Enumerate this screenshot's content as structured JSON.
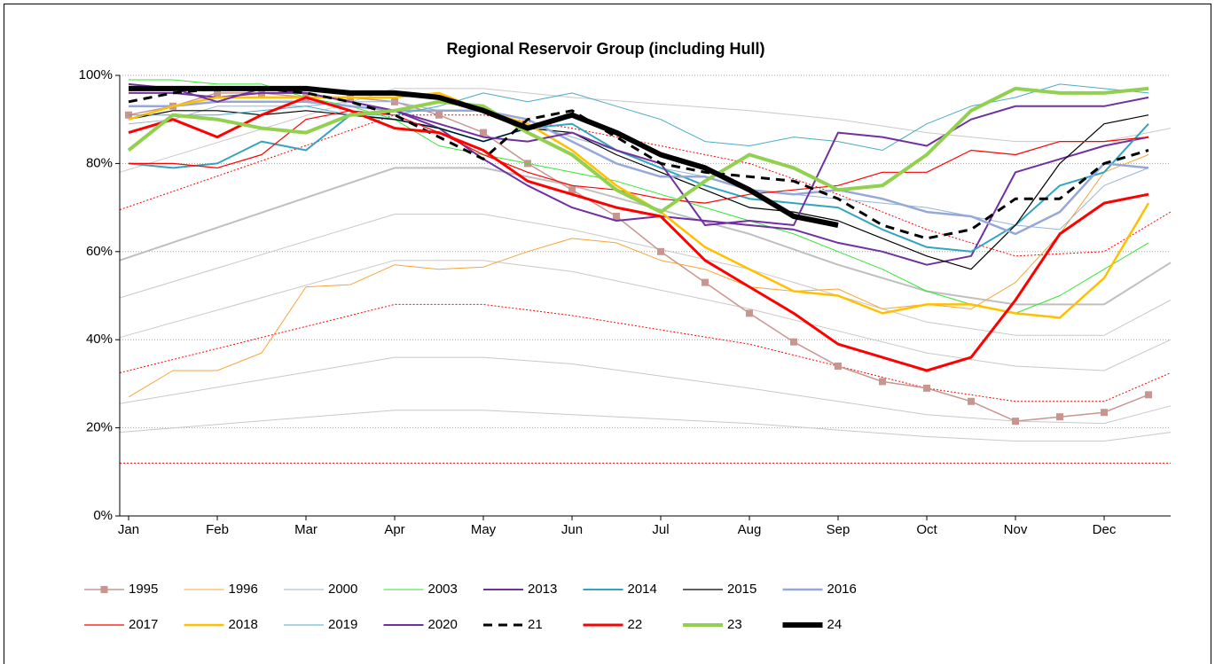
{
  "chart_data": {
    "type": "line",
    "title": "Regional Reservoir Group (including Hull)",
    "xlim": [
      -0.1,
      11.75
    ],
    "xticks": [
      {
        "value": 0,
        "label": "Jan"
      },
      {
        "value": 1,
        "label": "Feb"
      },
      {
        "value": 2,
        "label": "Mar"
      },
      {
        "value": 3,
        "label": "Apr"
      },
      {
        "value": 4,
        "label": "May"
      },
      {
        "value": 5,
        "label": "Jun"
      },
      {
        "value": 6,
        "label": "Jul"
      },
      {
        "value": 7,
        "label": "Aug"
      },
      {
        "value": 8,
        "label": "Sep"
      },
      {
        "value": 9,
        "label": "Oct"
      },
      {
        "value": 10,
        "label": "Nov"
      },
      {
        "value": 11,
        "label": "Dec"
      }
    ],
    "ylim": [
      0,
      100
    ],
    "yticks": [
      {
        "value": 0,
        "label": "0%"
      },
      {
        "value": 20,
        "label": "20%"
      },
      {
        "value": 40,
        "label": "40%"
      },
      {
        "value": 60,
        "label": "60%"
      },
      {
        "value": 80,
        "label": "80%"
      },
      {
        "value": 100,
        "label": "100%"
      }
    ],
    "grid": true,
    "legend": "bottom",
    "x": [
      0,
      0.5,
      1,
      1.5,
      2,
      2.5,
      3,
      3.5,
      4,
      4.5,
      5,
      5.5,
      6,
      6.5,
      7,
      7.5,
      8,
      8.5,
      9,
      9.5,
      10,
      10.5,
      11,
      11.5
    ],
    "series": [
      {
        "name": "1995",
        "color": "#c8958f",
        "marker": "square",
        "values": [
          91,
          93,
          96,
          96,
          95,
          95,
          94,
          91,
          87,
          80,
          74,
          68,
          60,
          53,
          46,
          39.5,
          34,
          30.5,
          29,
          26,
          21.5,
          22.5,
          23.5,
          27.5
        ]
      },
      {
        "name": "1996",
        "color": "#f5a53a",
        "values": [
          27,
          33,
          33,
          37,
          52,
          52.5,
          57,
          56,
          56.5,
          60,
          63,
          62,
          58,
          56,
          52,
          51,
          51.5,
          47,
          48,
          47,
          53,
          64,
          78,
          82
        ]
      },
      {
        "name": "2000",
        "color": "#95b3d7",
        "values": [
          89,
          90,
          93,
          93,
          93,
          94,
          94,
          92,
          92,
          89,
          86,
          83,
          79,
          77,
          74,
          73,
          72,
          71,
          70,
          68,
          66,
          65,
          75,
          79
        ]
      },
      {
        "name": "2003",
        "color": "#33e633",
        "values": [
          99,
          99,
          98,
          98,
          95,
          93,
          90,
          84,
          82,
          80,
          78,
          76,
          73,
          70,
          67,
          64,
          60,
          56,
          51,
          48,
          46,
          50,
          56,
          62
        ]
      },
      {
        "name": "2013",
        "color": "#7030a0",
        "values": [
          96,
          96,
          95,
          96,
          96,
          94,
          92,
          88,
          81,
          75,
          70,
          67,
          68,
          67,
          66,
          65,
          62,
          60,
          57,
          59,
          78,
          81,
          84,
          86
        ]
      },
      {
        "name": "2014",
        "color": "#31a5c0",
        "values": [
          80,
          79,
          80,
          85,
          83,
          91,
          90,
          88,
          85,
          88,
          89,
          83,
          79,
          75,
          72,
          71,
          70,
          65,
          61,
          60,
          66,
          75,
          78,
          89
        ]
      },
      {
        "name": "2015",
        "color": "#000000",
        "values": [
          90,
          92,
          92,
          91,
          92,
          91,
          90,
          88,
          85,
          88,
          87,
          82,
          78,
          74,
          70,
          69,
          67,
          63,
          59,
          56,
          66,
          80,
          89,
          91
        ]
      },
      {
        "name": "2016",
        "color": "#95a8d8",
        "values": [
          93,
          93,
          94,
          94,
          94,
          93,
          92,
          92,
          92,
          90,
          85,
          80,
          77,
          77,
          74,
          73,
          74,
          72,
          69,
          68,
          64,
          69,
          80,
          79
        ]
      },
      {
        "name": "2017",
        "color": "#ff0000",
        "values": [
          80,
          80,
          79,
          82,
          90,
          92,
          91,
          87,
          82,
          78,
          75,
          74,
          72,
          71,
          73,
          74,
          75,
          78,
          78,
          83,
          82,
          85,
          85,
          86
        ]
      },
      {
        "name": "2018",
        "color": "#ffc000",
        "values": [
          90,
          93,
          95,
          95,
          95,
          95,
          95,
          96,
          92,
          89,
          83,
          75,
          69,
          61,
          56,
          51,
          50,
          46,
          48,
          48,
          46,
          45,
          54,
          71
        ]
      },
      {
        "name": "2019",
        "color": "#4bacc6",
        "values": [
          91,
          91,
          91,
          92,
          93,
          91,
          91,
          93,
          96,
          94,
          96,
          93,
          90,
          85,
          84,
          86,
          85,
          83,
          89,
          93,
          95,
          98,
          97,
          96
        ]
      },
      {
        "name": "2020",
        "color": "#7030a0",
        "values": [
          98,
          97,
          94,
          97,
          96,
          94,
          92,
          89,
          86,
          85,
          87,
          83,
          80,
          66,
          67,
          66,
          87,
          86,
          84,
          90,
          93,
          93,
          93,
          95
        ]
      },
      {
        "name": "21",
        "color": "#000000",
        "line_style": "dashed",
        "values": [
          94,
          96,
          97,
          97,
          96,
          94,
          91,
          86,
          81,
          90,
          92,
          86,
          80,
          78,
          77,
          76,
          72,
          66,
          63,
          65,
          72,
          72,
          80,
          83
        ]
      },
      {
        "name": "22",
        "color": "#ff0000",
        "values": [
          87,
          90,
          86,
          91,
          95,
          92,
          88,
          87,
          83,
          76,
          73,
          70,
          68,
          58,
          52,
          46,
          39,
          36,
          33,
          36,
          49,
          64,
          71,
          73
        ]
      },
      {
        "name": "23",
        "color": "#92d050",
        "values": [
          83,
          91,
          90,
          88,
          87,
          91,
          92,
          94,
          93,
          87,
          82,
          74,
          69,
          76,
          82,
          79,
          74,
          75,
          82,
          92,
          97,
          96,
          96,
          97
        ]
      },
      {
        "name": "24",
        "color": "#000000",
        "values": [
          97,
          97,
          97,
          97,
          97,
          96,
          96,
          95,
          92,
          88,
          91,
          87,
          82,
          79,
          74,
          68,
          66,
          null,
          null,
          null,
          null,
          null,
          null,
          null
        ]
      }
    ],
    "reference_x": [
      -0.1,
      3,
      4,
      5,
      7,
      8,
      9,
      10,
      11,
      11.75
    ],
    "reference_lines": [
      {
        "color": "#c8c8c8",
        "values": [
          78,
          97,
          97,
          95,
          92,
          90,
          87,
          85,
          85,
          88
        ]
      },
      {
        "color": "#ff0000",
        "line_style": "dotted",
        "values": [
          69.5,
          91,
          91,
          88,
          80,
          73,
          65,
          59,
          60,
          69
        ]
      },
      {
        "color": "#bfbfbf",
        "values": [
          58,
          79,
          79,
          75,
          64,
          57,
          51,
          48,
          48,
          57.5
        ]
      },
      {
        "color": "#c8c8c8",
        "values": [
          49.5,
          68.5,
          68.5,
          65,
          56,
          50,
          44,
          41,
          41,
          49
        ]
      },
      {
        "color": "#c8c8c8",
        "values": [
          40.5,
          58,
          58,
          55.5,
          47,
          42,
          37,
          34,
          33,
          40
        ]
      },
      {
        "color": "#ff0000",
        "line_style": "dotted",
        "values": [
          32.5,
          48,
          48,
          45.5,
          39,
          34,
          29,
          26,
          26,
          32.5
        ]
      },
      {
        "color": "#c8c8c8",
        "values": [
          25.5,
          36,
          36,
          34.5,
          29,
          26,
          23,
          21.5,
          21,
          25
        ]
      },
      {
        "color": "#c8c8c8",
        "values": [
          19,
          24,
          24,
          23,
          21,
          19.5,
          18,
          17,
          17,
          19
        ]
      },
      {
        "color": "#ff0000",
        "line_style": "dotted",
        "values": [
          12,
          12,
          12,
          12,
          12,
          12,
          12,
          12,
          12,
          12
        ]
      }
    ]
  }
}
